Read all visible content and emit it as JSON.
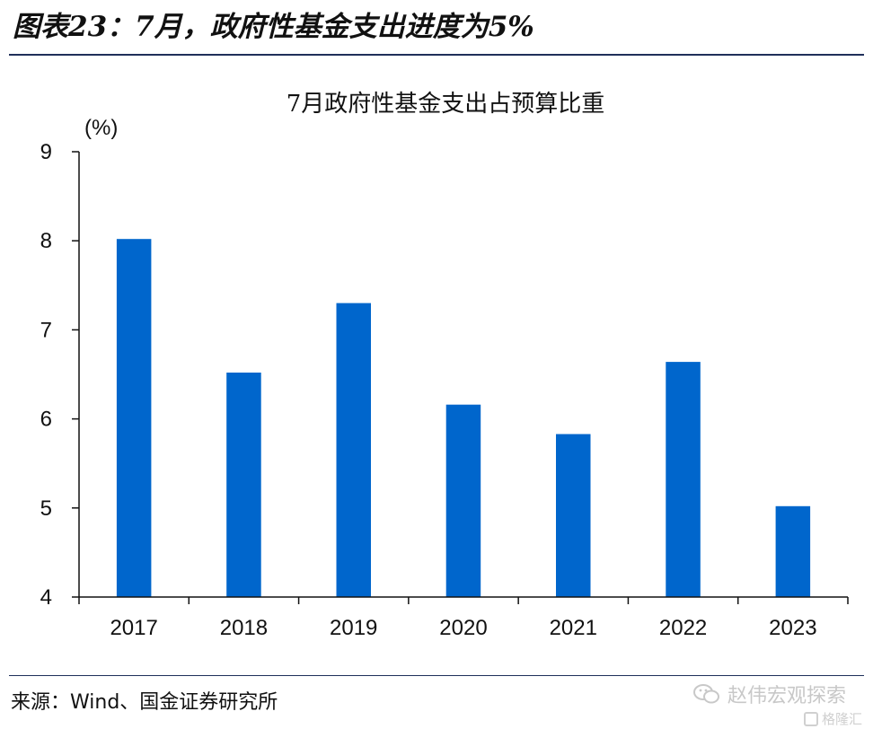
{
  "figure": {
    "title": "图表23：7月，政府性基金支出进度为5%",
    "source": "来源：Wind、国金证券研究所"
  },
  "watermark": {
    "text": "赵伟宏观探索",
    "sub_text": "格隆汇",
    "icon": "wechat-icon"
  },
  "chart_data": {
    "type": "bar",
    "title": "7月政府性基金支出占预算比重",
    "ylabel": "(%)",
    "xlabel": "",
    "categories": [
      "2017",
      "2018",
      "2019",
      "2020",
      "2021",
      "2022",
      "2023"
    ],
    "values": [
      8.02,
      6.52,
      7.3,
      6.16,
      5.83,
      6.64,
      5.02
    ],
    "ylim": [
      4,
      9
    ],
    "yticks": [
      "4",
      "5",
      "6",
      "7",
      "8",
      "9"
    ],
    "grid": false,
    "legend": "none",
    "bar_color": "#0066CC"
  }
}
